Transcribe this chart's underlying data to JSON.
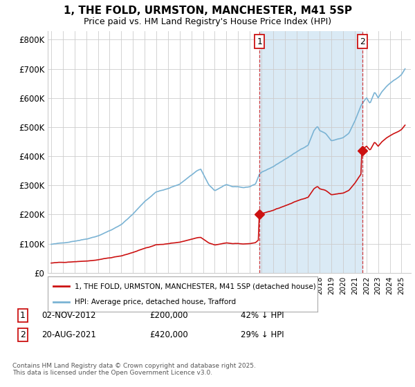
{
  "title": "1, THE FOLD, URMSTON, MANCHESTER, M41 5SP",
  "subtitle": "Price paid vs. HM Land Registry's House Price Index (HPI)",
  "ylabel_ticks": [
    "£0",
    "£100K",
    "£200K",
    "£300K",
    "£400K",
    "£500K",
    "£600K",
    "£700K",
    "£800K"
  ],
  "ytick_values": [
    0,
    100000,
    200000,
    300000,
    400000,
    500000,
    600000,
    700000,
    800000
  ],
  "ylim": [
    0,
    830000
  ],
  "xlim_start": 1994.7,
  "xlim_end": 2025.8,
  "hpi_color": "#7ab3d4",
  "hpi_fill_color": "#daeaf5",
  "price_color": "#cc1111",
  "marker1_date": 2012.84,
  "marker2_date": 2021.63,
  "marker1_price": 200000,
  "marker2_price": 420000,
  "annotation1_label": "1",
  "annotation2_label": "2",
  "annotation1_text": "02-NOV-2012",
  "annotation1_price_text": "£200,000",
  "annotation1_hpi_text": "42% ↓ HPI",
  "annotation2_text": "20-AUG-2021",
  "annotation2_price_text": "£420,000",
  "annotation2_hpi_text": "29% ↓ HPI",
  "legend_label_price": "1, THE FOLD, URMSTON, MANCHESTER, M41 5SP (detached house)",
  "legend_label_hpi": "HPI: Average price, detached house, Trafford",
  "footer_text": "Contains HM Land Registry data © Crown copyright and database right 2025.\nThis data is licensed under the Open Government Licence v3.0.",
  "background_color": "#ffffff",
  "grid_color": "#cccccc"
}
